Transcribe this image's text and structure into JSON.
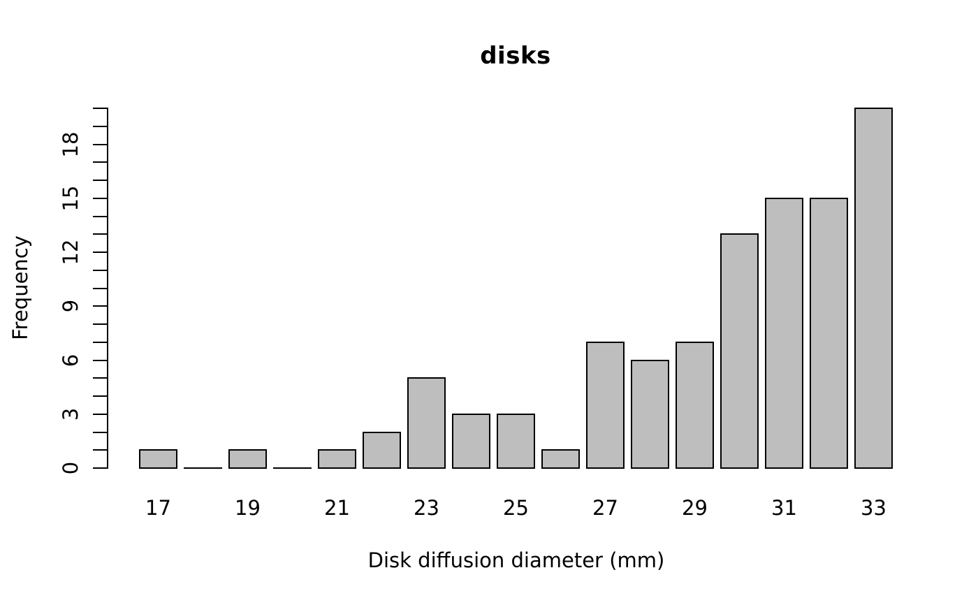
{
  "chart_data": {
    "type": "bar",
    "subtype": "histogram",
    "title": "disks",
    "xlabel": "Disk diffusion diameter (mm)",
    "ylabel": "Frequency",
    "categories": [
      17,
      18,
      19,
      20,
      21,
      22,
      23,
      24,
      25,
      26,
      27,
      28,
      29,
      30,
      31,
      32,
      33
    ],
    "values": [
      1,
      0,
      1,
      0,
      1,
      2,
      5,
      3,
      3,
      1,
      7,
      6,
      7,
      13,
      15,
      15,
      20
    ],
    "x_tick_labels": [
      "17",
      "19",
      "21",
      "23",
      "25",
      "27",
      "29",
      "31",
      "33"
    ],
    "y_tick_labels": [
      "0",
      "3",
      "6",
      "9",
      "12",
      "15",
      "18"
    ],
    "y_label_values": [
      0,
      3,
      6,
      9,
      12,
      15,
      18
    ],
    "ylim": [
      0,
      20
    ],
    "y_minor_tick_step": 1,
    "y_label_step": 3,
    "grid": false,
    "legend": false,
    "bar_fill_color": "#bebebe",
    "bar_stroke_color": "#000000",
    "background_color": "#ffffff",
    "text_color": "#000000"
  }
}
